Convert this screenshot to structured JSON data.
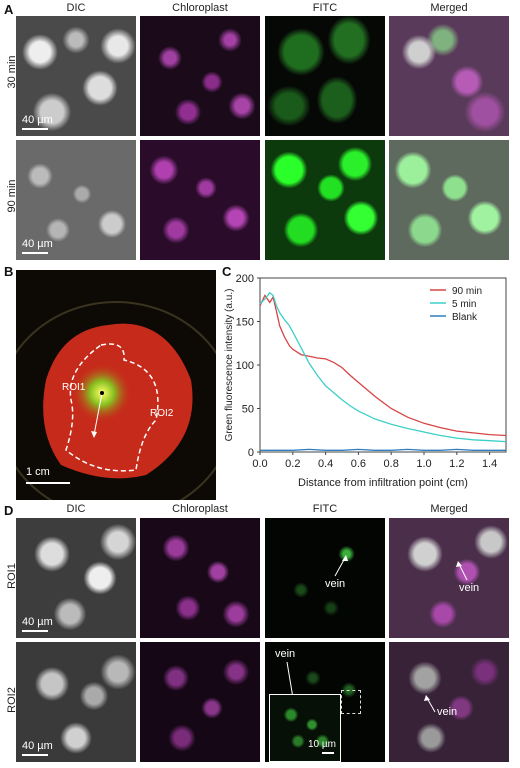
{
  "panel_a": {
    "letter": "A",
    "columns": [
      "DIC",
      "Chloroplast",
      "FITC",
      "Merged"
    ],
    "rows": [
      "30 min",
      "90 min"
    ],
    "scale_bar": "40 µm"
  },
  "panel_b": {
    "letter": "B",
    "roi1": "ROI1",
    "roi2": "ROI2",
    "scale_bar": "1 cm"
  },
  "panel_c": {
    "letter": "C"
  },
  "chart_data": {
    "type": "line",
    "title": "",
    "xlabel": "Distance from infiltration point (cm)",
    "ylabel": "Green fluorescence intensity (a.u.)",
    "xlim": [
      0,
      1.5
    ],
    "ylim": [
      0,
      200
    ],
    "xticks": [
      0.0,
      0.2,
      0.4,
      0.6,
      0.8,
      1.0,
      1.2,
      1.4
    ],
    "xtick_labels": [
      "0.0",
      "0.2",
      "0.4",
      "0.6",
      "0.8",
      "1.0",
      "1.2",
      "1.4"
    ],
    "yticks": [
      0,
      50,
      100,
      150,
      200
    ],
    "ytick_labels": [
      "0",
      "50",
      "100",
      "150",
      "200"
    ],
    "legend_position": "top-right",
    "series": [
      {
        "name": "90 min",
        "color": "#d64545",
        "x": [
          0.0,
          0.03,
          0.06,
          0.08,
          0.1,
          0.12,
          0.15,
          0.18,
          0.2,
          0.25,
          0.3,
          0.35,
          0.4,
          0.45,
          0.5,
          0.55,
          0.6,
          0.7,
          0.8,
          0.9,
          1.0,
          1.1,
          1.2,
          1.3,
          1.4,
          1.5
        ],
        "y": [
          168,
          180,
          172,
          178,
          162,
          145,
          132,
          122,
          118,
          112,
          110,
          108,
          107,
          103,
          97,
          88,
          80,
          64,
          50,
          40,
          33,
          28,
          24,
          22,
          20,
          19
        ]
      },
      {
        "name": "5 min",
        "color": "#3dcfc8",
        "x": [
          0.0,
          0.03,
          0.06,
          0.08,
          0.1,
          0.12,
          0.15,
          0.18,
          0.2,
          0.25,
          0.3,
          0.35,
          0.4,
          0.45,
          0.5,
          0.55,
          0.6,
          0.7,
          0.8,
          0.9,
          1.0,
          1.1,
          1.2,
          1.3,
          1.4,
          1.5
        ],
        "y": [
          170,
          176,
          183,
          180,
          168,
          160,
          152,
          145,
          138,
          120,
          102,
          88,
          76,
          68,
          60,
          53,
          47,
          38,
          32,
          27,
          23,
          19,
          16,
          14,
          13,
          12
        ]
      },
      {
        "name": "Blank",
        "color": "#2f7ec0",
        "x": [
          0.0,
          0.1,
          0.2,
          0.3,
          0.4,
          0.5,
          0.6,
          0.7,
          0.8,
          0.9,
          1.0,
          1.1,
          1.2,
          1.3,
          1.4,
          1.5
        ],
        "y": [
          2,
          2,
          2,
          3,
          2,
          2,
          3,
          2,
          2,
          3,
          2,
          2,
          3,
          2,
          2,
          2
        ]
      }
    ]
  },
  "panel_d": {
    "letter": "D",
    "columns": [
      "DIC",
      "Chloroplast",
      "FITC",
      "Merged"
    ],
    "rows": [
      "ROI1",
      "ROI2"
    ],
    "scale_bar": "40 µm",
    "inset_scale_bar": "10 µm",
    "vein_label": "vein"
  }
}
